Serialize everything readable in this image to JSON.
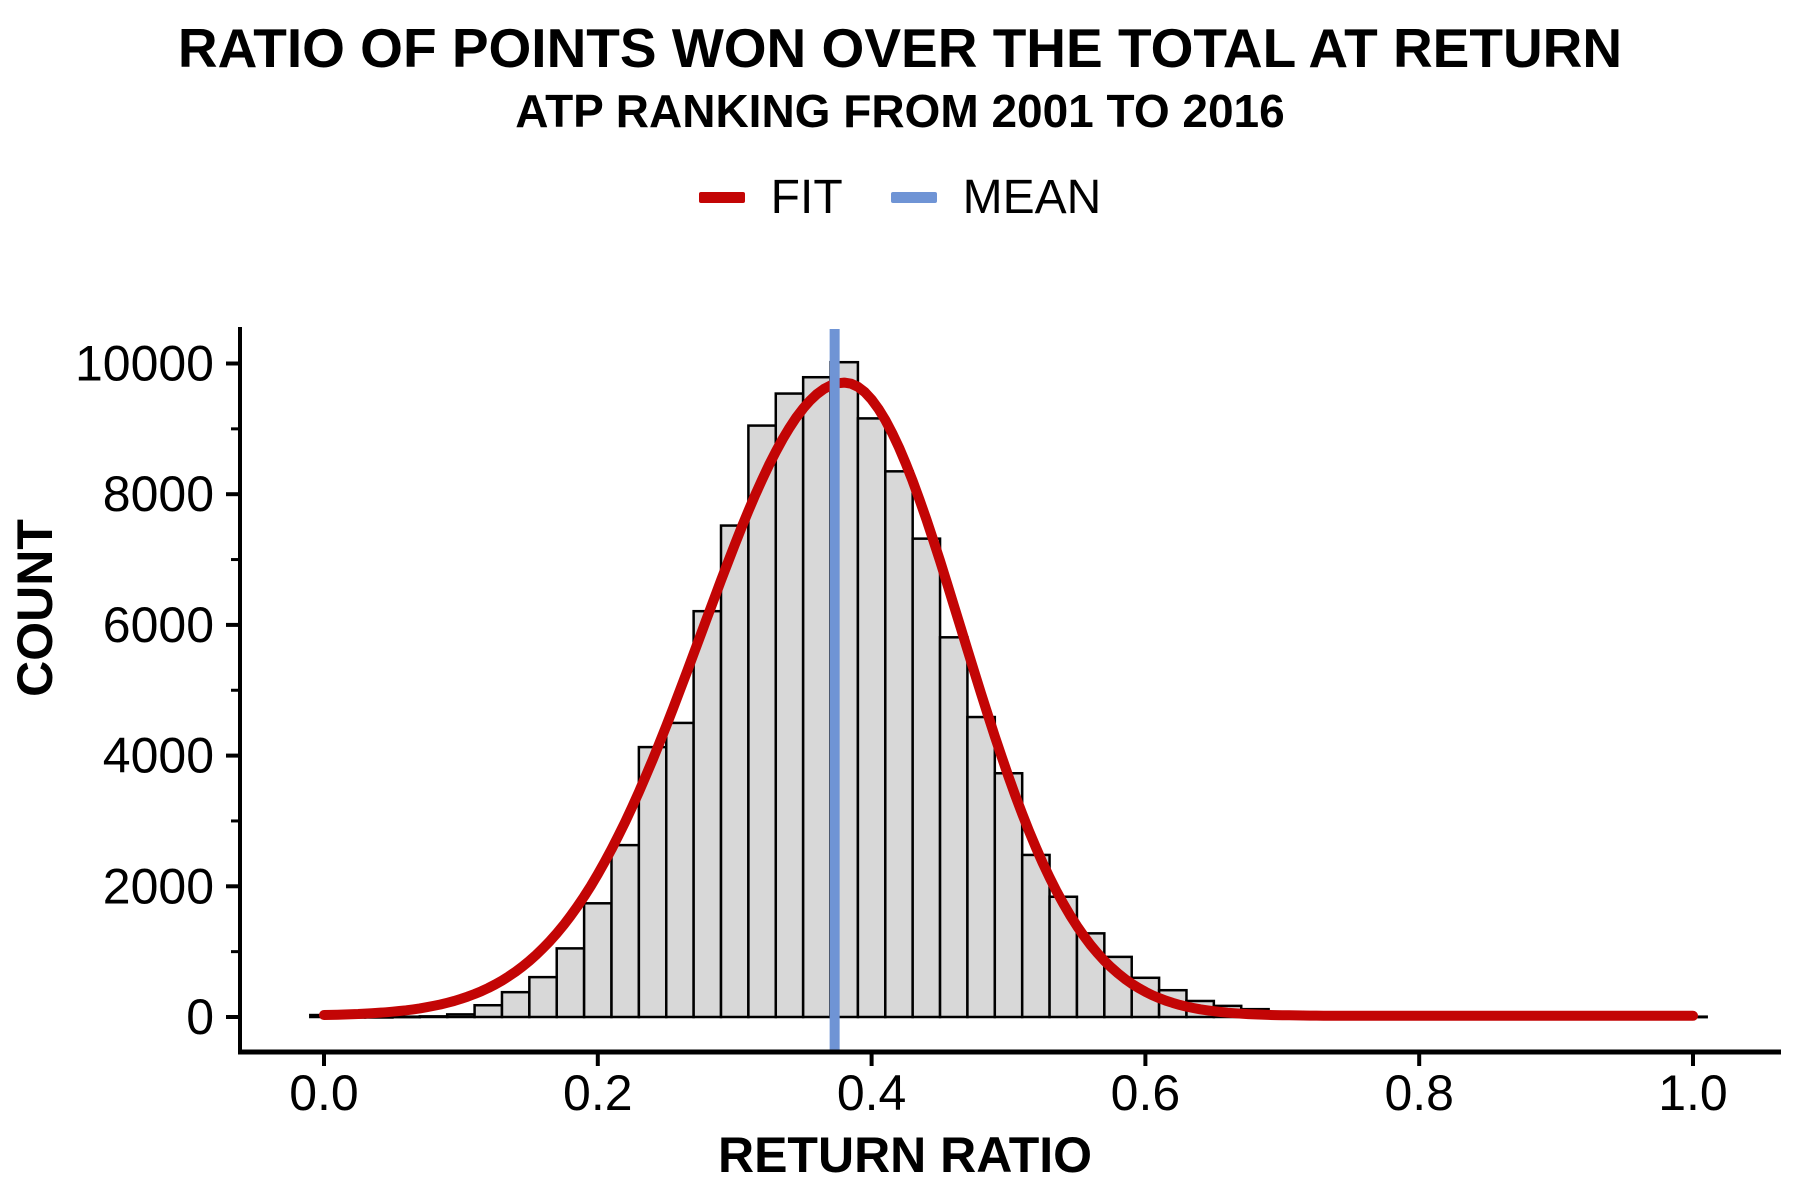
{
  "title": "RATIO OF POINTS WON OVER THE TOTAL AT RETURN",
  "subtitle": "ATP RANKING FROM 2001 TO 2016",
  "legend": {
    "items": [
      {
        "label": "FIT",
        "color": "#C30505"
      },
      {
        "label": "MEAN",
        "color": "#6F94D5"
      }
    ]
  },
  "chart_data": {
    "type": "bar",
    "subtype": "histogram-with-fit",
    "title": "RATIO OF POINTS WON OVER THE TOTAL AT RETURN",
    "subtitle": "ATP RANKING FROM 2001 TO 2016",
    "xlabel": "RETURN RATIO",
    "ylabel": "COUNT",
    "xlim": [
      -0.061,
      1.064
    ],
    "ylim": [
      0,
      10530
    ],
    "grid": "off",
    "legend_position": "top-center",
    "bin_width": 0.02,
    "bins": [
      [
        0.0,
        30
      ],
      [
        0.02,
        0
      ],
      [
        0.04,
        0
      ],
      [
        0.06,
        5
      ],
      [
        0.08,
        10
      ],
      [
        0.1,
        40
      ],
      [
        0.12,
        180
      ],
      [
        0.14,
        380
      ],
      [
        0.16,
        610
      ],
      [
        0.18,
        1050
      ],
      [
        0.2,
        1740
      ],
      [
        0.22,
        2630
      ],
      [
        0.24,
        4130
      ],
      [
        0.26,
        4500
      ],
      [
        0.28,
        6210
      ],
      [
        0.3,
        7520
      ],
      [
        0.32,
        9050
      ],
      [
        0.34,
        9540
      ],
      [
        0.36,
        9790
      ],
      [
        0.38,
        10020
      ],
      [
        0.4,
        9160
      ],
      [
        0.42,
        8350
      ],
      [
        0.44,
        7320
      ],
      [
        0.46,
        5810
      ],
      [
        0.48,
        4590
      ],
      [
        0.5,
        3730
      ],
      [
        0.52,
        2480
      ],
      [
        0.54,
        1840
      ],
      [
        0.56,
        1280
      ],
      [
        0.58,
        920
      ],
      [
        0.6,
        600
      ],
      [
        0.62,
        410
      ],
      [
        0.64,
        245
      ],
      [
        0.66,
        170
      ],
      [
        0.68,
        120
      ],
      [
        0.7,
        80
      ],
      [
        0.72,
        50
      ],
      [
        0.74,
        30
      ],
      [
        0.76,
        15
      ],
      [
        0.78,
        8
      ],
      [
        0.8,
        0
      ],
      [
        0.82,
        0
      ],
      [
        0.84,
        0
      ],
      [
        0.86,
        0
      ],
      [
        0.88,
        0
      ],
      [
        0.9,
        0
      ],
      [
        0.92,
        0
      ],
      [
        0.94,
        0
      ],
      [
        0.96,
        0
      ],
      [
        0.98,
        0
      ],
      [
        1.0,
        5
      ]
    ],
    "fit_curve": {
      "name": "FIT",
      "shape": "gaussian",
      "baseline": 18,
      "amplitude": 9690,
      "peak_x": 0.38,
      "sigma_left": 0.104,
      "sigma_right": 0.086,
      "x_range": [
        0.0,
        1.0
      ]
    },
    "mean_line": {
      "name": "MEAN",
      "x": 0.373
    },
    "x_ticks": {
      "values": [
        0.0,
        0.2,
        0.4,
        0.6,
        0.8,
        1.0
      ],
      "labels": [
        "0.0",
        "0.2",
        "0.4",
        "0.6",
        "0.8",
        "1.0"
      ]
    },
    "y_ticks_major": {
      "values": [
        0,
        2000,
        4000,
        6000,
        8000,
        10000
      ],
      "labels": [
        "0",
        "2000",
        "4000",
        "6000",
        "8000",
        "10000"
      ]
    },
    "y_ticks_minor": [
      1000,
      3000,
      5000,
      7000,
      9000
    ],
    "colors": {
      "bar_fill": "#D8D8D8",
      "bar_stroke": "#000000",
      "fit_line": "#C30505",
      "mean_line": "#6F94D5",
      "axis": "#000000",
      "text": "#000000",
      "background": "#FFFFFF"
    }
  }
}
